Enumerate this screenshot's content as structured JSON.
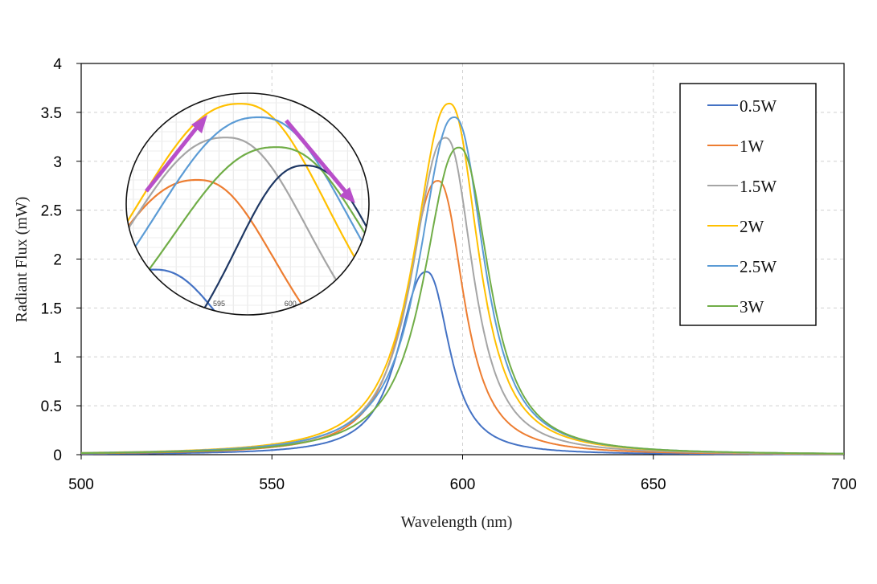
{
  "chart_data": {
    "type": "line",
    "xlabel": "Wavelength (nm)",
    "ylabel": "Radiant Flux (mW)",
    "xlim": [
      500,
      700
    ],
    "ylim": [
      0,
      4
    ],
    "x_ticks": [
      "500",
      "550",
      "600",
      "650",
      "700"
    ],
    "y_ticks": [
      "0",
      "0.5",
      "1",
      "1.5",
      "2",
      "2.5",
      "3",
      "3.5",
      "4"
    ],
    "grid": true,
    "legend_position": "top-right",
    "series": [
      {
        "name": "0.5W",
        "color": "#4472c4",
        "peak_x": 590.5,
        "peak_y": 1.87,
        "width_left": 8.5,
        "width_right": 7.0
      },
      {
        "name": "1W",
        "color": "#ed7d31",
        "peak_x": 593.5,
        "peak_y": 2.8,
        "width_left": 9.5,
        "width_right": 7.8
      },
      {
        "name": "1.5W",
        "color": "#a5a5a5",
        "peak_x": 595.5,
        "peak_y": 3.24,
        "width_left": 10.0,
        "width_right": 8.3
      },
      {
        "name": "2W",
        "color": "#ffc000",
        "peak_x": 596.5,
        "peak_y": 3.59,
        "width_left": 10.5,
        "width_right": 8.8
      },
      {
        "name": "2.5W",
        "color": "#5b9bd5",
        "peak_x": 597.8,
        "peak_y": 3.45,
        "width_left": 10.5,
        "width_right": 9.0
      },
      {
        "name": "3W",
        "color": "#70ad47",
        "peak_x": 599.0,
        "peak_y": 3.14,
        "width_left": 10.5,
        "width_right": 9.2
      }
    ],
    "inset": {
      "x_ticks": [
        "595",
        "600"
      ],
      "xlim": [
        588.5,
        605.5
      ],
      "ylim": [
        1.4,
        3.7
      ],
      "arrow_color": "#b84fc9",
      "highlight_color": "#1f3864"
    }
  }
}
